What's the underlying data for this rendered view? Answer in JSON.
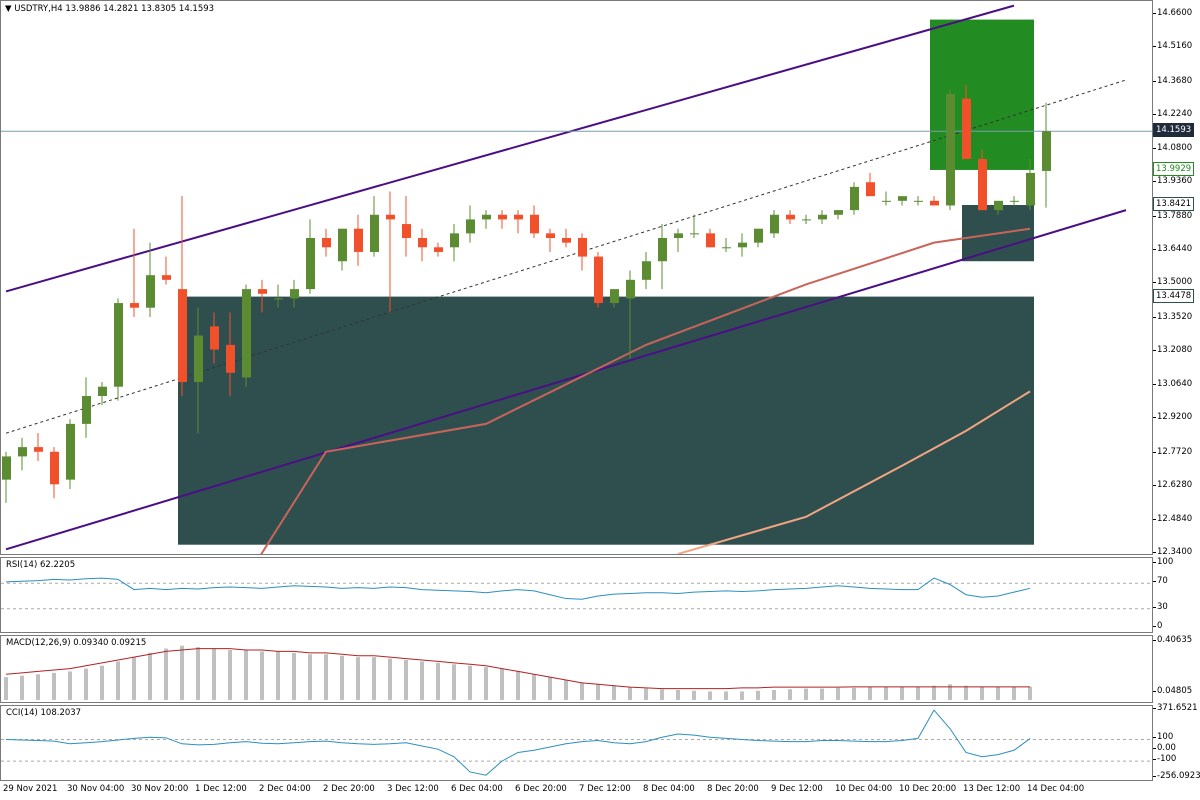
{
  "chart": {
    "symbol_header": "USDTRY,H4  13.9886 14.2821 13.8305 14.1593",
    "menu_icon": "triangle-down-icon",
    "current_price": "14.1593",
    "level_labels": [
      "13.9929",
      "13.8421",
      "13.4478"
    ],
    "price_axis": [
      "14.6600",
      "14.5160",
      "14.3680",
      "14.2240",
      "14.0800",
      "13.9360",
      "13.7880",
      "13.6440",
      "13.5000",
      "13.3520",
      "13.2080",
      "13.0640",
      "12.9200",
      "12.7720",
      "12.6280",
      "12.4840",
      "12.3400"
    ],
    "time_axis": [
      "29 Nov 2021",
      "30 Nov 04:00",
      "30 Nov 20:00",
      "1 Dec 12:00",
      "2 Dec 04:00",
      "2 Dec 20:00",
      "3 Dec 12:00",
      "6 Dec 04:00",
      "6 Dec 20:00",
      "7 Dec 12:00",
      "8 Dec 04:00",
      "8 Dec 20:00",
      "9 Dec 12:00",
      "10 Dec 04:00",
      "10 Dec 20:00",
      "13 Dec 12:00",
      "14 Dec 04:00"
    ],
    "colors": {
      "bull": "#5b8c32",
      "bear": "#f0502a",
      "channel": "#4b0f85",
      "ma_fast": "#c8645a",
      "ma_slow": "#f3a582",
      "zone_dark": "#2f4f4f",
      "zone_green": "#228b22",
      "indicator": "#2c8fc0",
      "signal": "#b22222",
      "histogram": "#c0c0c0"
    }
  },
  "rsi": {
    "header": "RSI(14) 62.2205",
    "axis": [
      "100",
      "70",
      "30",
      "0"
    ]
  },
  "macd": {
    "header": "MACD(12,26,9) 0.09340 0.09215",
    "axis": [
      "0.40635",
      "0.04805"
    ]
  },
  "cci": {
    "header": "CCI(14) 108.2037",
    "axis": [
      "371.6521",
      "100",
      "0.00",
      "-100",
      "-256.0923"
    ]
  },
  "chart_data": {
    "type": "candlestick",
    "title": "USDTRY,H4",
    "ohlc_last": {
      "open": 13.9886,
      "high": 14.2821,
      "low": 13.8305,
      "close": 14.1593
    },
    "price_range": [
      12.34,
      14.72
    ],
    "candles": [
      [
        12.66,
        12.78,
        12.56,
        12.76
      ],
      [
        12.76,
        12.84,
        12.7,
        12.8
      ],
      [
        12.8,
        12.86,
        12.74,
        12.78
      ],
      [
        12.78,
        12.8,
        12.58,
        12.64
      ],
      [
        12.66,
        12.92,
        12.62,
        12.9
      ],
      [
        12.9,
        13.1,
        12.84,
        13.02
      ],
      [
        13.02,
        13.08,
        12.98,
        13.06
      ],
      [
        13.06,
        13.44,
        13.0,
        13.42
      ],
      [
        13.42,
        13.74,
        13.36,
        13.4
      ],
      [
        13.4,
        13.68,
        13.36,
        13.54
      ],
      [
        13.54,
        13.62,
        13.5,
        13.52
      ],
      [
        13.48,
        13.88,
        13.02,
        13.08
      ],
      [
        13.08,
        13.4,
        12.86,
        13.28
      ],
      [
        13.32,
        13.38,
        13.16,
        13.22
      ],
      [
        13.24,
        13.38,
        13.02,
        13.12
      ],
      [
        13.1,
        13.5,
        13.06,
        13.48
      ],
      [
        13.48,
        13.52,
        13.38,
        13.46
      ],
      [
        13.44,
        13.5,
        13.4,
        13.44
      ],
      [
        13.44,
        13.52,
        13.4,
        13.48
      ],
      [
        13.48,
        13.78,
        13.46,
        13.7
      ],
      [
        13.7,
        13.74,
        13.62,
        13.66
      ],
      [
        13.6,
        13.74,
        13.56,
        13.74
      ],
      [
        13.74,
        13.8,
        13.58,
        13.64
      ],
      [
        13.64,
        13.88,
        13.62,
        13.8
      ],
      [
        13.8,
        13.9,
        13.38,
        13.78
      ],
      [
        13.76,
        13.88,
        13.62,
        13.7
      ],
      [
        13.7,
        13.74,
        13.6,
        13.66
      ],
      [
        13.66,
        13.68,
        13.62,
        13.64
      ],
      [
        13.66,
        13.76,
        13.6,
        13.72
      ],
      [
        13.72,
        13.84,
        13.68,
        13.78
      ],
      [
        13.78,
        13.82,
        13.74,
        13.8
      ],
      [
        13.8,
        13.82,
        13.74,
        13.78
      ],
      [
        13.8,
        13.82,
        13.72,
        13.78
      ],
      [
        13.8,
        13.84,
        13.7,
        13.72
      ],
      [
        13.72,
        13.74,
        13.64,
        13.7
      ],
      [
        13.7,
        13.74,
        13.66,
        13.68
      ],
      [
        13.7,
        13.72,
        13.56,
        13.62
      ],
      [
        13.62,
        13.64,
        13.4,
        13.42
      ],
      [
        13.42,
        13.48,
        13.4,
        13.48
      ],
      [
        13.44,
        13.56,
        13.18,
        13.52
      ],
      [
        13.52,
        13.64,
        13.48,
        13.6
      ],
      [
        13.6,
        13.76,
        13.48,
        13.7
      ],
      [
        13.7,
        13.74,
        13.64,
        13.72
      ],
      [
        13.72,
        13.8,
        13.7,
        13.72
      ],
      [
        13.72,
        13.74,
        13.66,
        13.66
      ],
      [
        13.66,
        13.7,
        13.64,
        13.66
      ],
      [
        13.66,
        13.72,
        13.62,
        13.68
      ],
      [
        13.68,
        13.74,
        13.66,
        13.74
      ],
      [
        13.72,
        13.82,
        13.7,
        13.8
      ],
      [
        13.8,
        13.82,
        13.76,
        13.78
      ],
      [
        13.78,
        13.8,
        13.76,
        13.78
      ],
      [
        13.78,
        13.82,
        13.76,
        13.8
      ],
      [
        13.8,
        13.82,
        13.78,
        13.82
      ],
      [
        13.82,
        13.94,
        13.8,
        13.92
      ],
      [
        13.94,
        13.98,
        13.88,
        13.88
      ],
      [
        13.86,
        13.9,
        13.84,
        13.86
      ],
      [
        13.86,
        13.88,
        13.84,
        13.88
      ],
      [
        13.86,
        13.88,
        13.84,
        13.86
      ],
      [
        13.86,
        13.88,
        13.84,
        13.84
      ],
      [
        13.84,
        14.34,
        13.82,
        14.32
      ],
      [
        14.3,
        14.36,
        14.04,
        14.04
      ],
      [
        14.04,
        14.08,
        13.82,
        13.82
      ],
      [
        13.82,
        13.86,
        13.8,
        13.86
      ],
      [
        13.86,
        13.88,
        13.84,
        13.86
      ],
      [
        13.84,
        14.04,
        13.82,
        13.98
      ],
      [
        13.9886,
        14.2821,
        13.8305,
        14.1593
      ]
    ],
    "moving_average_fast": [
      [
        11,
        11.8
      ],
      [
        20,
        12.78
      ],
      [
        30,
        12.9
      ],
      [
        40,
        13.24
      ],
      [
        50,
        13.5
      ],
      [
        58,
        13.68
      ],
      [
        64,
        13.74
      ]
    ],
    "moving_average_slow": [
      [
        42,
        12.34
      ],
      [
        50,
        12.5
      ],
      [
        56,
        12.72
      ],
      [
        60,
        12.87
      ],
      [
        64,
        13.04
      ]
    ],
    "channel": {
      "upper": [
        [
          0,
          13.47
        ],
        [
          63,
          14.7
        ]
      ],
      "lower": [
        [
          0,
          12.36
        ],
        [
          70,
          13.82
        ]
      ],
      "mid": [
        [
          0,
          12.86
        ],
        [
          70,
          14.38
        ]
      ]
    },
    "zones": [
      {
        "from": 11,
        "to": 64,
        "top": 13.4478,
        "bottom": 12.38
      },
      {
        "from": 58,
        "to": 64,
        "top": 14.64,
        "bottom": 13.9929
      },
      {
        "from": 60,
        "to": 64,
        "top": 13.8421,
        "bottom": 13.6
      }
    ],
    "rsi_values": [
      72,
      73,
      74,
      76,
      75,
      77,
      78,
      76,
      60,
      62,
      60,
      62,
      61,
      63,
      64,
      63,
      62,
      64,
      66,
      65,
      64,
      62,
      63,
      62,
      64,
      63,
      60,
      59,
      58,
      57,
      55,
      58,
      60,
      58,
      52,
      46,
      45,
      50,
      53,
      54,
      55,
      55,
      54,
      56,
      57,
      58,
      57,
      58,
      60,
      61,
      62,
      64,
      66,
      64,
      62,
      61,
      60,
      60,
      78,
      68,
      52,
      48,
      50,
      56,
      62
    ],
    "macd_hist": [
      0.16,
      0.17,
      0.18,
      0.19,
      0.2,
      0.22,
      0.24,
      0.27,
      0.3,
      0.33,
      0.36,
      0.38,
      0.37,
      0.36,
      0.35,
      0.35,
      0.34,
      0.34,
      0.33,
      0.32,
      0.32,
      0.31,
      0.3,
      0.3,
      0.29,
      0.28,
      0.27,
      0.26,
      0.25,
      0.24,
      0.23,
      0.22,
      0.2,
      0.18,
      0.16,
      0.14,
      0.12,
      0.11,
      0.1,
      0.09,
      0.08,
      0.075,
      0.07,
      0.065,
      0.06,
      0.06,
      0.06,
      0.065,
      0.07,
      0.075,
      0.08,
      0.08,
      0.085,
      0.085,
      0.09,
      0.09,
      0.095,
      0.095,
      0.1,
      0.11,
      0.1,
      0.095,
      0.092,
      0.093,
      0.0934
    ],
    "macd_signal": [
      0.18,
      0.19,
      0.2,
      0.21,
      0.22,
      0.24,
      0.26,
      0.28,
      0.3,
      0.32,
      0.34,
      0.35,
      0.36,
      0.36,
      0.36,
      0.35,
      0.35,
      0.34,
      0.34,
      0.33,
      0.33,
      0.32,
      0.31,
      0.31,
      0.3,
      0.29,
      0.28,
      0.27,
      0.26,
      0.25,
      0.24,
      0.22,
      0.2,
      0.18,
      0.16,
      0.14,
      0.12,
      0.11,
      0.1,
      0.09,
      0.085,
      0.08,
      0.08,
      0.08,
      0.08,
      0.08,
      0.085,
      0.085,
      0.09,
      0.09,
      0.09,
      0.09,
      0.09,
      0.092,
      0.092,
      0.092,
      0.092,
      0.092,
      0.092,
      0.0921,
      0.0921,
      0.0921,
      0.0921,
      0.0921,
      0.09215
    ],
    "cci_values": [
      100,
      95,
      90,
      85,
      60,
      70,
      80,
      95,
      110,
      120,
      115,
      60,
      50,
      55,
      70,
      80,
      65,
      60,
      70,
      80,
      85,
      70,
      60,
      55,
      60,
      70,
      40,
      10,
      -60,
      -200,
      -230,
      -100,
      -20,
      0,
      30,
      60,
      80,
      90,
      70,
      60,
      80,
      120,
      150,
      140,
      120,
      110,
      100,
      90,
      85,
      80,
      80,
      90,
      90,
      85,
      80,
      80,
      90,
      110,
      371,
      200,
      -20,
      -60,
      -40,
      0,
      108
    ]
  }
}
